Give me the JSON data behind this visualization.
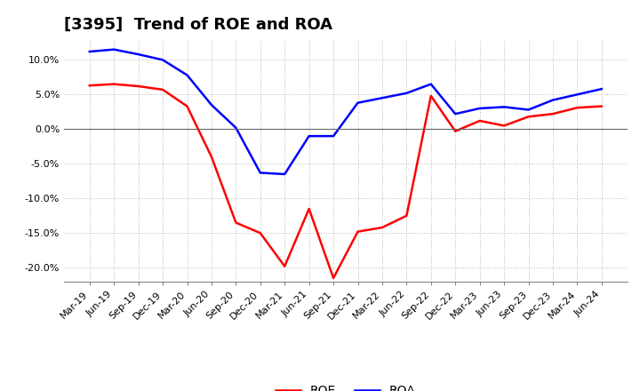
{
  "title": "[3395]  Trend of ROE and ROA",
  "x_labels": [
    "Mar-19",
    "Jun-19",
    "Sep-19",
    "Dec-19",
    "Mar-20",
    "Jun-20",
    "Sep-20",
    "Dec-20",
    "Mar-21",
    "Jun-21",
    "Sep-21",
    "Dec-21",
    "Mar-22",
    "Jun-22",
    "Sep-22",
    "Dec-22",
    "Mar-23",
    "Jun-23",
    "Sep-23",
    "Dec-23",
    "Mar-24",
    "Jun-24"
  ],
  "roe": [
    6.3,
    6.5,
    6.2,
    5.7,
    3.3,
    -4.0,
    -13.5,
    -15.0,
    -19.8,
    -11.5,
    -21.5,
    -14.8,
    -14.2,
    -12.5,
    4.8,
    -0.3,
    1.2,
    0.5,
    1.8,
    2.2,
    3.1,
    3.3
  ],
  "roa": [
    11.2,
    11.5,
    10.8,
    10.0,
    7.8,
    3.5,
    0.2,
    -6.3,
    -6.5,
    -1.0,
    -1.0,
    3.8,
    4.5,
    5.2,
    6.5,
    2.2,
    3.0,
    3.2,
    2.8,
    4.2,
    5.0,
    5.8
  ],
  "roe_color": "#ff0000",
  "roa_color": "#0000ff",
  "background_color": "#ffffff",
  "grid_color": "#aaaaaa",
  "ylim": [
    -22,
    13
  ],
  "yticks": [
    -20.0,
    -15.0,
    -10.0,
    -5.0,
    0.0,
    5.0,
    10.0
  ],
  "title_fontsize": 13,
  "tick_fontsize": 8,
  "legend_fontsize": 10,
  "line_width": 1.8
}
